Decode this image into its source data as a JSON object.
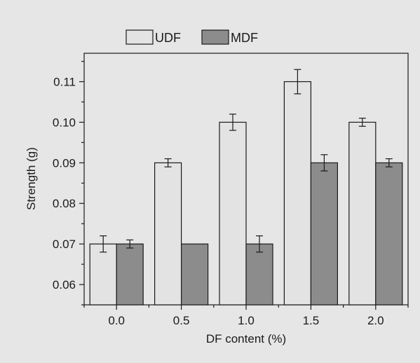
{
  "chart_data": {
    "type": "bar",
    "title": "",
    "xlabel": "DF content (%)",
    "ylabel": "Strength (g)",
    "categories": [
      "0.0",
      "0.5",
      "1.0",
      "1.5",
      "2.0"
    ],
    "ylim": [
      0.055,
      0.117
    ],
    "yticks": [
      "0.06",
      "0.07",
      "0.08",
      "0.09",
      "0.10",
      "0.11"
    ],
    "legend_position": "top",
    "grid": false,
    "series": [
      {
        "name": "UDF",
        "color": "#e3e3e3",
        "values": [
          0.07,
          0.09,
          0.1,
          0.11,
          0.1
        ],
        "errors": [
          0.002,
          0.001,
          0.002,
          0.003,
          0.001
        ]
      },
      {
        "name": "MDF",
        "color": "#8c8c8c",
        "values": [
          0.07,
          0.07,
          0.07,
          0.09,
          0.09
        ],
        "errors": [
          0.001,
          0.0,
          0.002,
          0.002,
          0.001
        ]
      }
    ]
  }
}
